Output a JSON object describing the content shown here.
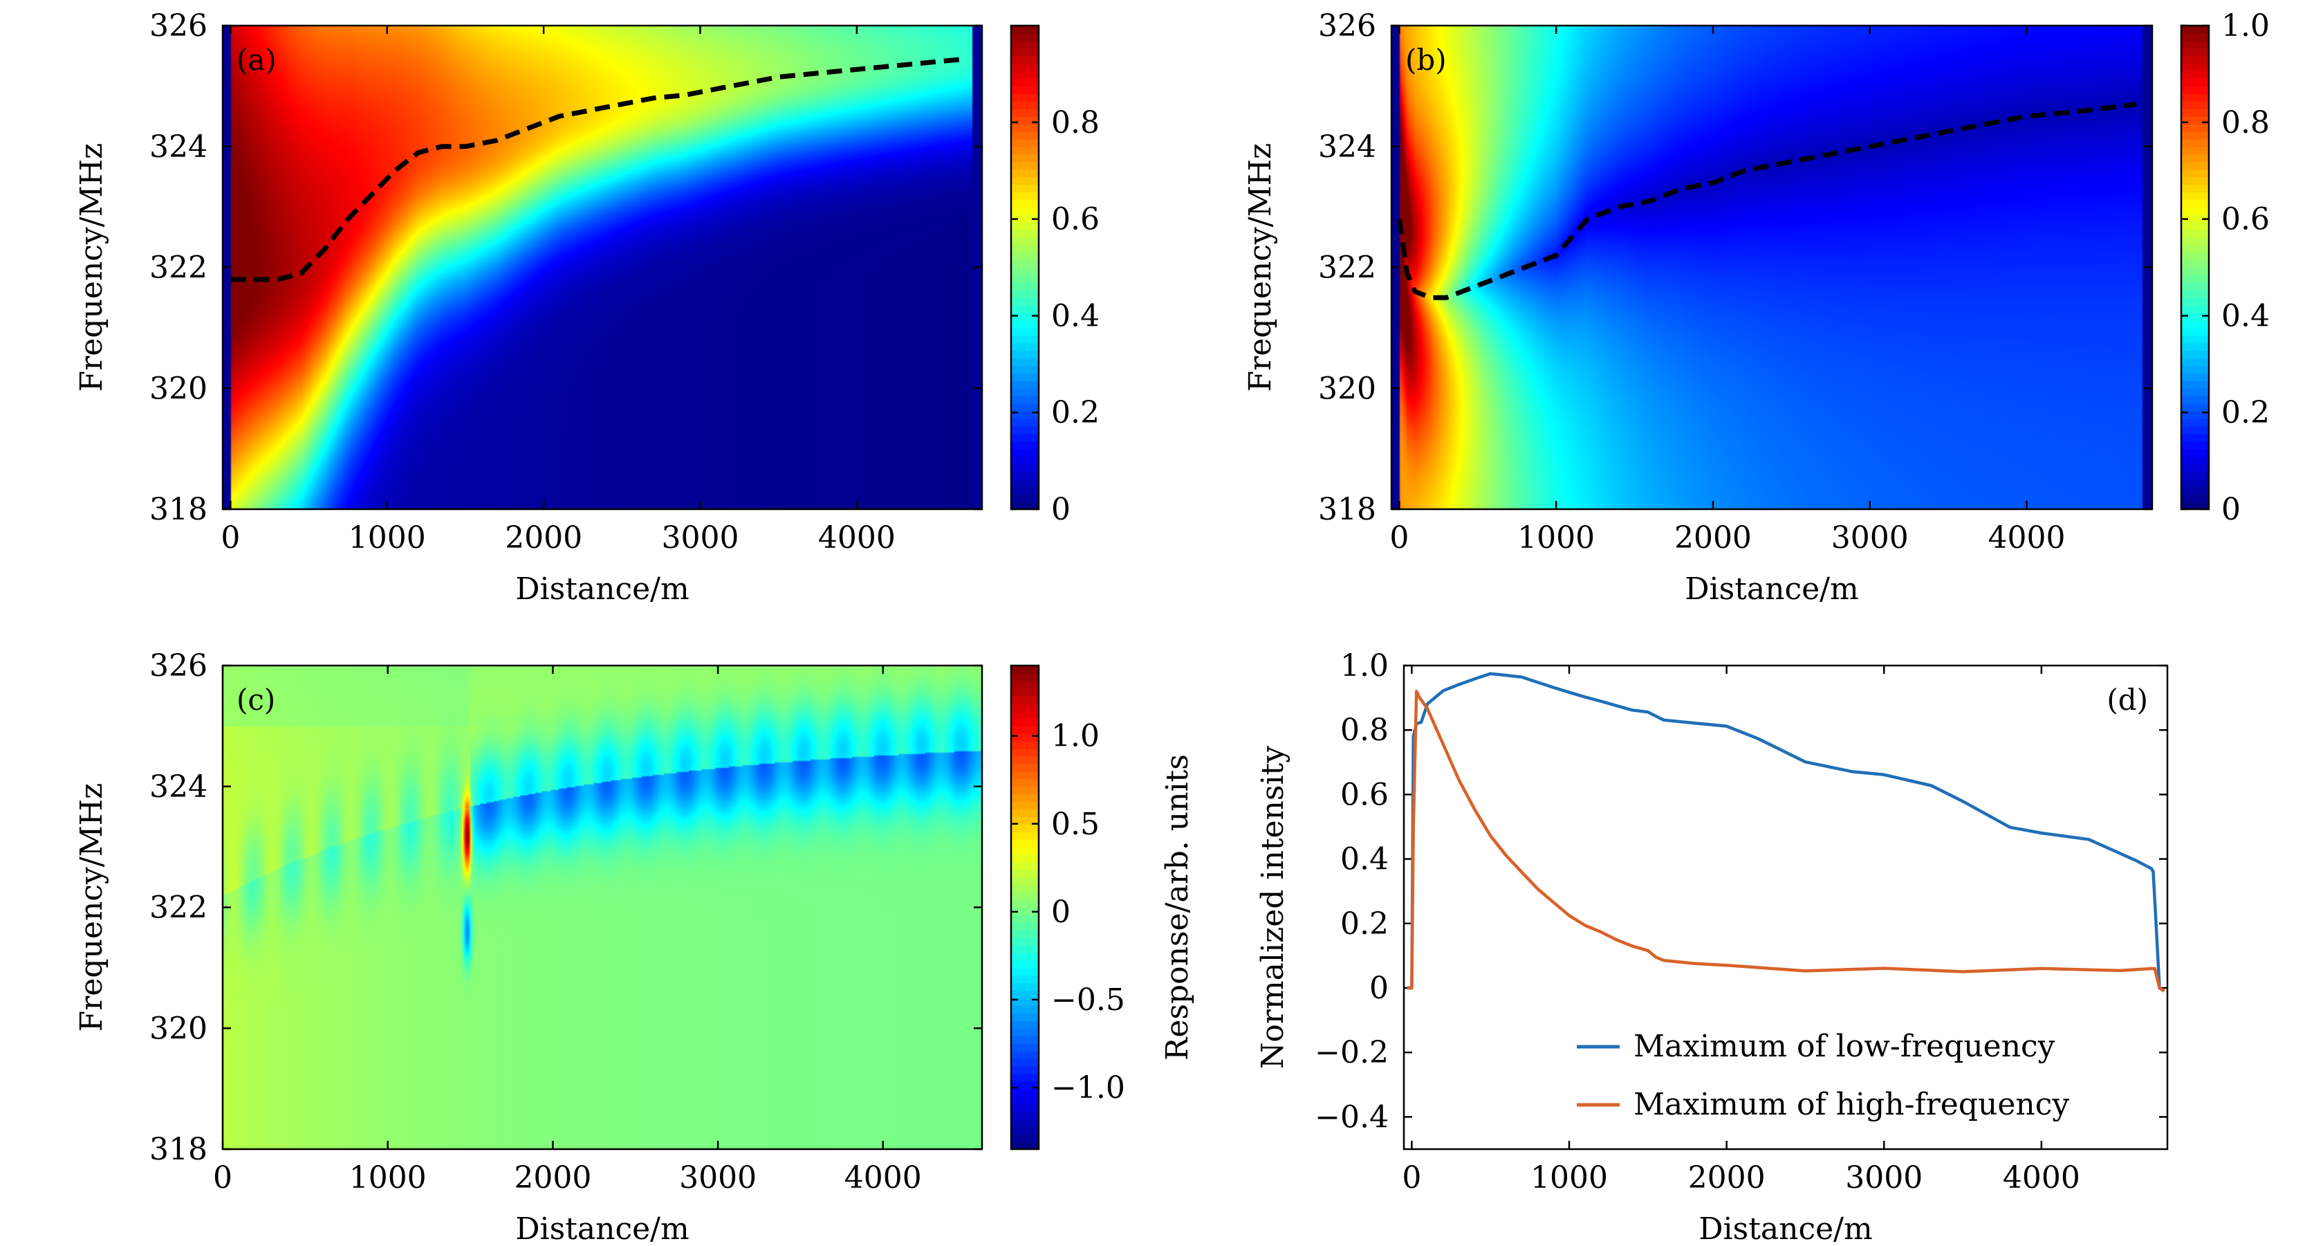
{
  "chart_data": [
    {
      "panel": "a",
      "type": "heatmap",
      "panel_label": "(a)",
      "xlabel": "Distance/m",
      "ylabel": "Frequency/MHz",
      "xlim": [
        -50,
        4800
      ],
      "ylim": [
        318,
        326
      ],
      "xticks": [
        0,
        1000,
        2000,
        3000,
        4000
      ],
      "yticks": [
        318,
        320,
        322,
        324,
        326
      ],
      "colorbar": {
        "range": [
          0,
          1.0
        ],
        "ticks": [
          0,
          0.2,
          0.4,
          0.6,
          0.8
        ],
        "tick_labels": [
          "0",
          "0.2",
          "0.4",
          "0.6",
          "0.8"
        ],
        "label": ""
      },
      "peak_trace": {
        "style": "dashed",
        "color": "#000000",
        "x": [
          0,
          150,
          300,
          450,
          600,
          750,
          900,
          1050,
          1200,
          1350,
          1500,
          1700,
          1900,
          2100,
          2300,
          2500,
          2700,
          2900,
          3100,
          3300,
          3500,
          3700,
          3900,
          4100,
          4300,
          4500,
          4700
        ],
        "y": [
          321.8,
          321.8,
          321.8,
          321.9,
          322.3,
          322.8,
          323.2,
          323.6,
          323.9,
          324.0,
          324.0,
          324.1,
          324.3,
          324.5,
          324.6,
          324.7,
          324.8,
          324.85,
          324.95,
          325.05,
          325.15,
          325.2,
          325.25,
          325.3,
          325.35,
          325.4,
          325.45
        ]
      }
    },
    {
      "panel": "b",
      "type": "heatmap",
      "panel_label": "(b)",
      "xlabel": "Distance/m",
      "ylabel": "Frequency/MHz",
      "xlim": [
        -50,
        4800
      ],
      "ylim": [
        318,
        326
      ],
      "xticks": [
        0,
        1000,
        2000,
        3000,
        4000
      ],
      "yticks": [
        318,
        320,
        322,
        324,
        326
      ],
      "colorbar": {
        "range": [
          0,
          1.0
        ],
        "ticks": [
          0,
          0.2,
          0.4,
          0.6,
          0.8,
          1.0
        ],
        "tick_labels": [
          "0",
          "0.2",
          "0.4",
          "0.6",
          "0.8",
          "1.0"
        ],
        "label": ""
      },
      "peak_trace": {
        "style": "dashed",
        "color": "#000000",
        "x": [
          0,
          50,
          100,
          200,
          300,
          400,
          500,
          600,
          700,
          800,
          900,
          1000,
          1100,
          1200,
          1400,
          1600,
          1800,
          2000,
          2200,
          2400,
          2600,
          2800,
          3000,
          3200,
          3400,
          3600,
          3800,
          4000,
          4200,
          4400,
          4700
        ],
        "y": [
          322.8,
          321.9,
          321.6,
          321.5,
          321.5,
          321.6,
          321.7,
          321.8,
          321.9,
          322.0,
          322.1,
          322.2,
          322.5,
          322.8,
          323.0,
          323.1,
          323.3,
          323.4,
          323.6,
          323.7,
          323.8,
          323.9,
          324.0,
          324.1,
          324.2,
          324.3,
          324.4,
          324.5,
          324.55,
          324.6,
          324.7
        ]
      }
    },
    {
      "panel": "c",
      "type": "heatmap",
      "panel_label": "(c)",
      "xlabel": "Distance/m",
      "ylabel": "Frequency/MHz",
      "xlim": [
        0,
        4600
      ],
      "ylim": [
        318,
        326
      ],
      "xticks": [
        0,
        1000,
        2000,
        3000,
        4000
      ],
      "yticks": [
        318,
        320,
        322,
        324,
        326
      ],
      "colorbar": {
        "range": [
          -1.35,
          1.4
        ],
        "ticks": [
          -1.0,
          -0.5,
          0,
          0.5,
          1.0
        ],
        "tick_labels": [
          "−1.0",
          "−0.5",
          "0",
          "0.5",
          "1.0"
        ],
        "label": "Response/arb. units"
      }
    },
    {
      "panel": "d",
      "type": "line",
      "panel_label": "(d)",
      "xlabel": "Distance/m",
      "ylabel": "Normalized intensity",
      "xlim": [
        -50,
        4800
      ],
      "ylim": [
        -0.5,
        1.0
      ],
      "xticks": [
        0,
        1000,
        2000,
        3000,
        4000
      ],
      "yticks": [
        -0.4,
        -0.2,
        0,
        0.2,
        0.4,
        0.6,
        0.8,
        1.0
      ],
      "ytick_labels": [
        "−0.4",
        "−0.2",
        "0",
        "0.2",
        "0.4",
        "0.6",
        "0.8",
        "1.0"
      ],
      "legend_position": "bottom-right",
      "series": [
        {
          "name": "Maximum of low-frequency",
          "color": "#1f6fb8",
          "x": [
            -30,
            -10,
            0,
            10,
            30,
            60,
            100,
            200,
            300,
            400,
            500,
            600,
            700,
            800,
            900,
            1000,
            1100,
            1200,
            1400,
            1500,
            1600,
            1800,
            2000,
            2200,
            2500,
            2800,
            3000,
            3300,
            3500,
            3800,
            4000,
            4300,
            4600,
            4700,
            4710,
            4730,
            4750,
            4780
          ],
          "y": [
            0.0,
            0.0,
            0.0,
            0.78,
            0.82,
            0.84,
            0.86,
            0.9,
            0.92,
            0.94,
            0.96,
            0.96,
            0.96,
            0.95,
            0.94,
            0.93,
            0.92,
            0.91,
            0.88,
            0.87,
            0.84,
            0.81,
            0.79,
            0.76,
            0.72,
            0.68,
            0.65,
            0.61,
            0.58,
            0.52,
            0.49,
            0.44,
            0.39,
            0.37,
            0.36,
            0.18,
            0.0,
            -0.01
          ]
        },
        {
          "name": "Maximum of high-frequency",
          "color": "#d8622a",
          "x": [
            -30,
            0,
            10,
            30,
            50,
            100,
            200,
            300,
            400,
            500,
            600,
            700,
            800,
            900,
            1000,
            1100,
            1200,
            1300,
            1400,
            1500,
            1550,
            1600,
            1800,
            2000,
            2500,
            3000,
            3500,
            4000,
            4500,
            4700,
            4720,
            4750,
            4780
          ],
          "y": [
            0.0,
            0.0,
            0.5,
            0.92,
            0.9,
            0.86,
            0.75,
            0.64,
            0.55,
            0.47,
            0.41,
            0.36,
            0.31,
            0.27,
            0.23,
            0.2,
            0.18,
            0.155,
            0.135,
            0.12,
            0.1,
            0.09,
            0.075,
            0.065,
            0.058,
            0.056,
            0.055,
            0.056,
            0.058,
            0.06,
            0.06,
            0.0,
            -0.01
          ]
        }
      ]
    }
  ]
}
